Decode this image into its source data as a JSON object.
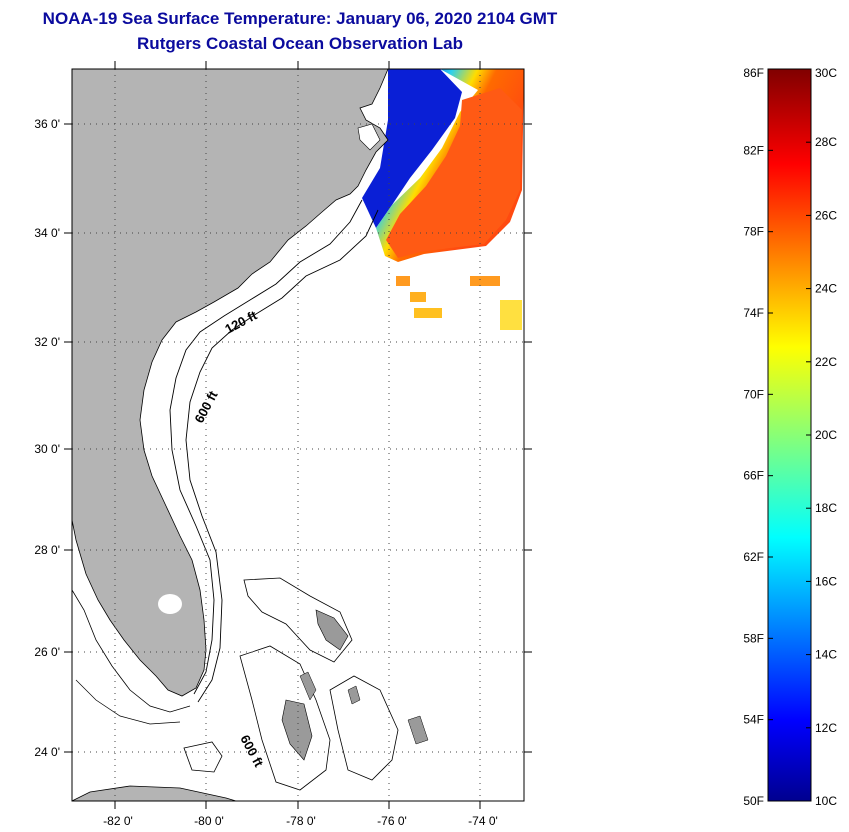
{
  "title": "NOAA-19 Sea Surface Temperature:  January 06, 2020 2104 GMT",
  "subtitle": "Rutgers Coastal Ocean Observation Lab",
  "map": {
    "lat_labels": [
      "36 0'",
      "34 0'",
      "32 0'",
      "30 0'",
      "28 0'",
      "26 0'",
      "24 0'"
    ],
    "lon_labels": [
      "-82 0'",
      "-80 0'",
      "-78 0'",
      "-76 0'",
      "-74 0'"
    ],
    "contour_labels": {
      "c120": "120 ft",
      "c600a": "600 ft",
      "c600b": "600 ft"
    },
    "colors": {
      "land": "#b4b4b4",
      "ocean": "#ffffff",
      "grid": "#000000"
    }
  },
  "colorbar": {
    "f_labels": [
      "86F",
      "82F",
      "78F",
      "74F",
      "70F",
      "66F",
      "62F",
      "58F",
      "54F",
      "50F"
    ],
    "c_labels": [
      "30C",
      "28C",
      "26C",
      "24C",
      "22C",
      "20C",
      "18C",
      "16C",
      "14C",
      "12C",
      "10C"
    ],
    "range_f": [
      50,
      86
    ],
    "range_c": [
      10,
      30
    ]
  }
}
